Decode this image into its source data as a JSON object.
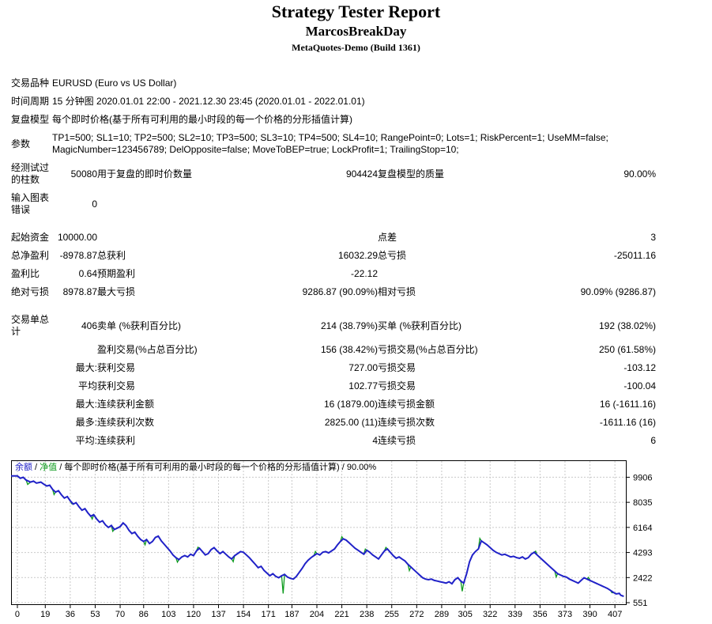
{
  "header": {
    "title": "Strategy Tester Report",
    "strategy": "MarcosBreakDay",
    "server": "MetaQuotes-Demo (Build 1361)"
  },
  "info_rows": [
    {
      "label": "交易品种",
      "value": "EURUSD (Euro vs US Dollar)"
    },
    {
      "label": "时间周期",
      "value": "15 分钟图 2020.01.01 22:00 - 2021.12.30 23:45 (2020.01.01 - 2022.01.01)"
    },
    {
      "label": "复盘模型",
      "value": "每个即时价格(基于所有可利用的最小时段的每一个价格的分形插值计算)"
    },
    {
      "label": "参数",
      "value": "TP1=500; SL1=10; TP2=500; SL2=10; TP3=500; SL3=10; TP4=500; SL4=10; RangePoint=0; Lots=1; RiskPercent=1; UseMM=false; MagicNumber=123456789; DelOpposite=false; MoveToBEP=true; LockProfit=1; TrailingStop=10;"
    }
  ],
  "stats": {
    "rows": [
      {
        "cells": [
          "经测试过的柱数",
          "50080",
          "用于复盘的即时价数量",
          "904424",
          "复盘模型的质量",
          "90.00%"
        ]
      },
      {
        "cells": [
          "输入图表错误",
          "0",
          "",
          "",
          "",
          ""
        ]
      },
      {
        "spacer": true
      },
      {
        "cells": [
          "起始资金",
          "10000.00",
          "",
          "",
          "点差",
          "3"
        ]
      },
      {
        "cells": [
          "总净盈利",
          "-8978.87",
          "总获利",
          "16032.29",
          "总亏损",
          "-25011.16"
        ]
      },
      {
        "cells": [
          "盈利比",
          "0.64",
          "预期盈利",
          "-22.12",
          "",
          ""
        ]
      },
      {
        "cells": [
          "绝对亏损",
          "8978.87",
          "最大亏损",
          "9286.87 (90.09%)",
          "相对亏损",
          "90.09% (9286.87)"
        ]
      },
      {
        "spacer": true
      },
      {
        "cells": [
          "交易单总计",
          "406",
          "卖单 (%获利百分比)",
          "214 (38.79%)",
          "买单 (%获利百分比)",
          "192 (38.02%)"
        ]
      },
      {
        "cells": [
          "",
          "",
          "盈利交易(%占总百分比)",
          "156 (38.42%)",
          "亏损交易(%占总百分比)",
          "250 (61.58%)"
        ]
      },
      {
        "cells": [
          "",
          "最大:",
          "获利交易",
          "727.00",
          "亏损交易",
          "-103.12"
        ]
      },
      {
        "cells": [
          "",
          "平均",
          "获利交易",
          "102.77",
          "亏损交易",
          "-100.04"
        ]
      },
      {
        "cells": [
          "",
          "最大:",
          "连续获利金额",
          "16 (1879.00)",
          "连续亏损金额",
          "16 (-1611.16)"
        ]
      },
      {
        "cells": [
          "",
          "最多:",
          "连续获利次数",
          "2825.00 (11)",
          "连续亏损次数",
          "-1611.16 (16)"
        ]
      },
      {
        "cells": [
          "",
          "平均:",
          "连续获利",
          "4",
          "连续亏损",
          "6"
        ]
      }
    ]
  },
  "chart_data": {
    "type": "line",
    "legend": {
      "balance_label": "余额",
      "equity_label": "净值",
      "model_label": "每个即时价格(基于所有可利用的最小时段的每一个价格的分形插值计算)",
      "quality_label": "90.00%",
      "separator": " / "
    },
    "colors": {
      "balance": "#2021C8",
      "equity": "#0E9B1E",
      "grid": "#C9C9C9",
      "border": "#000000",
      "tick_text": "#000000"
    },
    "y_ticks": [
      9906,
      8035,
      6164,
      4293,
      2422,
      551
    ],
    "x_ticks": [
      0,
      19,
      36,
      53,
      70,
      86,
      103,
      120,
      137,
      154,
      171,
      187,
      204,
      221,
      238,
      255,
      272,
      289,
      305,
      322,
      339,
      356,
      373,
      390,
      407
    ],
    "x_range": [
      -4.3,
      415
    ],
    "y_range": [
      375,
      11170
    ],
    "series": [
      {
        "name": "净值",
        "role": "equity",
        "points_base": "balance",
        "extra_points": [
          [
            7,
            9370
          ],
          [
            25,
            8610
          ],
          [
            37,
            7940
          ],
          [
            51,
            6790
          ],
          [
            65,
            5870
          ],
          [
            87,
            4870
          ],
          [
            109,
            3570
          ],
          [
            123,
            4690
          ],
          [
            147,
            3610
          ],
          [
            181,
            1230
          ],
          [
            203,
            4370
          ],
          [
            221,
            5470
          ],
          [
            237,
            4550
          ],
          [
            251,
            4670
          ],
          [
            267,
            2940
          ],
          [
            303,
            1400
          ],
          [
            315,
            5340
          ],
          [
            353,
            4390
          ],
          [
            367,
            2470
          ],
          [
            389,
            2440
          ],
          [
            405,
            1290
          ]
        ]
      },
      {
        "name": "余额",
        "role": "balance",
        "points": [
          [
            -4.3,
            10000
          ],
          [
            0,
            10000
          ],
          [
            2,
            9830
          ],
          [
            4,
            9900
          ],
          [
            6,
            9690
          ],
          [
            9,
            9540
          ],
          [
            11,
            9610
          ],
          [
            13,
            9470
          ],
          [
            16,
            9540
          ],
          [
            18,
            9390
          ],
          [
            20,
            9250
          ],
          [
            22,
            9310
          ],
          [
            24,
            9000
          ],
          [
            26,
            8800
          ],
          [
            28,
            8900
          ],
          [
            30,
            8600
          ],
          [
            32,
            8350
          ],
          [
            34,
            8460
          ],
          [
            36,
            8150
          ],
          [
            38,
            7900
          ],
          [
            40,
            8010
          ],
          [
            42,
            7700
          ],
          [
            44,
            7450
          ],
          [
            46,
            7560
          ],
          [
            48,
            7250
          ],
          [
            50,
            7000
          ],
          [
            52,
            7110
          ],
          [
            54,
            6800
          ],
          [
            56,
            6550
          ],
          [
            58,
            6660
          ],
          [
            60,
            6350
          ],
          [
            62,
            6160
          ],
          [
            64,
            6310
          ],
          [
            66,
            6010
          ],
          [
            68,
            6110
          ],
          [
            70,
            6220
          ],
          [
            72,
            6500
          ],
          [
            74,
            6300
          ],
          [
            76,
            5950
          ],
          [
            78,
            5700
          ],
          [
            80,
            5810
          ],
          [
            82,
            5500
          ],
          [
            84,
            5260
          ],
          [
            86,
            5110
          ],
          [
            88,
            5260
          ],
          [
            90,
            4960
          ],
          [
            92,
            5110
          ],
          [
            94,
            5410
          ],
          [
            96,
            5510
          ],
          [
            98,
            5160
          ],
          [
            100,
            4910
          ],
          [
            102,
            4660
          ],
          [
            104,
            4410
          ],
          [
            106,
            4110
          ],
          [
            108,
            3910
          ],
          [
            110,
            3760
          ],
          [
            112,
            3960
          ],
          [
            114,
            4060
          ],
          [
            116,
            3960
          ],
          [
            118,
            4160
          ],
          [
            120,
            4060
          ],
          [
            122,
            4410
          ],
          [
            124,
            4610
          ],
          [
            126,
            4360
          ],
          [
            128,
            4110
          ],
          [
            130,
            4210
          ],
          [
            132,
            4510
          ],
          [
            134,
            4660
          ],
          [
            136,
            4410
          ],
          [
            138,
            4210
          ],
          [
            140,
            4360
          ],
          [
            142,
            4160
          ],
          [
            144,
            3960
          ],
          [
            146,
            3810
          ],
          [
            148,
            4060
          ],
          [
            150,
            4210
          ],
          [
            152,
            4360
          ],
          [
            154,
            4310
          ],
          [
            156,
            4110
          ],
          [
            158,
            3910
          ],
          [
            160,
            3660
          ],
          [
            162,
            3410
          ],
          [
            164,
            3160
          ],
          [
            166,
            3260
          ],
          [
            168,
            2960
          ],
          [
            170,
            2760
          ],
          [
            172,
            2560
          ],
          [
            174,
            2710
          ],
          [
            176,
            2510
          ],
          [
            178,
            2410
          ],
          [
            180,
            2560
          ],
          [
            182,
            2660
          ],
          [
            184,
            2460
          ],
          [
            186,
            2360
          ],
          [
            188,
            2310
          ],
          [
            190,
            2510
          ],
          [
            192,
            2810
          ],
          [
            194,
            3110
          ],
          [
            196,
            3460
          ],
          [
            198,
            3710
          ],
          [
            200,
            3910
          ],
          [
            202,
            4060
          ],
          [
            204,
            4210
          ],
          [
            206,
            4110
          ],
          [
            208,
            4310
          ],
          [
            210,
            4360
          ],
          [
            212,
            4260
          ],
          [
            214,
            4410
          ],
          [
            216,
            4560
          ],
          [
            218,
            4860
          ],
          [
            220,
            5110
          ],
          [
            222,
            5310
          ],
          [
            224,
            5210
          ],
          [
            226,
            5010
          ],
          [
            228,
            4810
          ],
          [
            230,
            4610
          ],
          [
            232,
            4460
          ],
          [
            234,
            4310
          ],
          [
            236,
            4160
          ],
          [
            238,
            4460
          ],
          [
            240,
            4310
          ],
          [
            242,
            4110
          ],
          [
            244,
            3960
          ],
          [
            246,
            3810
          ],
          [
            248,
            4110
          ],
          [
            250,
            4410
          ],
          [
            252,
            4560
          ],
          [
            254,
            4310
          ],
          [
            256,
            4060
          ],
          [
            258,
            3860
          ],
          [
            260,
            3960
          ],
          [
            262,
            3810
          ],
          [
            264,
            3660
          ],
          [
            266,
            3410
          ],
          [
            268,
            3210
          ],
          [
            270,
            3010
          ],
          [
            272,
            2810
          ],
          [
            274,
            2610
          ],
          [
            276,
            2410
          ],
          [
            278,
            2310
          ],
          [
            280,
            2260
          ],
          [
            282,
            2310
          ],
          [
            284,
            2210
          ],
          [
            286,
            2160
          ],
          [
            288,
            2110
          ],
          [
            290,
            2060
          ],
          [
            292,
            2010
          ],
          [
            294,
            2110
          ],
          [
            296,
            1960
          ],
          [
            298,
            2260
          ],
          [
            300,
            2410
          ],
          [
            302,
            2160
          ],
          [
            304,
            2010
          ],
          [
            306,
            2710
          ],
          [
            308,
            3610
          ],
          [
            310,
            4110
          ],
          [
            312,
            4360
          ],
          [
            314,
            4560
          ],
          [
            316,
            5160
          ],
          [
            318,
            5010
          ],
          [
            320,
            4860
          ],
          [
            322,
            4660
          ],
          [
            324,
            4460
          ],
          [
            326,
            4310
          ],
          [
            328,
            4210
          ],
          [
            330,
            4110
          ],
          [
            332,
            4160
          ],
          [
            334,
            4060
          ],
          [
            336,
            3960
          ],
          [
            338,
            4010
          ],
          [
            340,
            3910
          ],
          [
            342,
            3860
          ],
          [
            344,
            3960
          ],
          [
            346,
            3810
          ],
          [
            348,
            3910
          ],
          [
            350,
            4160
          ],
          [
            352,
            4310
          ],
          [
            354,
            4110
          ],
          [
            356,
            3910
          ],
          [
            358,
            3710
          ],
          [
            360,
            3510
          ],
          [
            362,
            3310
          ],
          [
            364,
            3110
          ],
          [
            366,
            2910
          ],
          [
            368,
            2710
          ],
          [
            370,
            2610
          ],
          [
            372,
            2510
          ],
          [
            374,
            2460
          ],
          [
            376,
            2310
          ],
          [
            378,
            2210
          ],
          [
            380,
            2110
          ],
          [
            382,
            2010
          ],
          [
            384,
            2210
          ],
          [
            386,
            2410
          ],
          [
            388,
            2310
          ],
          [
            390,
            2210
          ],
          [
            392,
            2110
          ],
          [
            394,
            2010
          ],
          [
            396,
            1910
          ],
          [
            398,
            1810
          ],
          [
            400,
            1710
          ],
          [
            402,
            1610
          ],
          [
            404,
            1460
          ],
          [
            406,
            1310
          ],
          [
            408,
            1200
          ],
          [
            410,
            1250
          ],
          [
            411,
            1100
          ],
          [
            413,
            1021
          ]
        ]
      }
    ]
  }
}
